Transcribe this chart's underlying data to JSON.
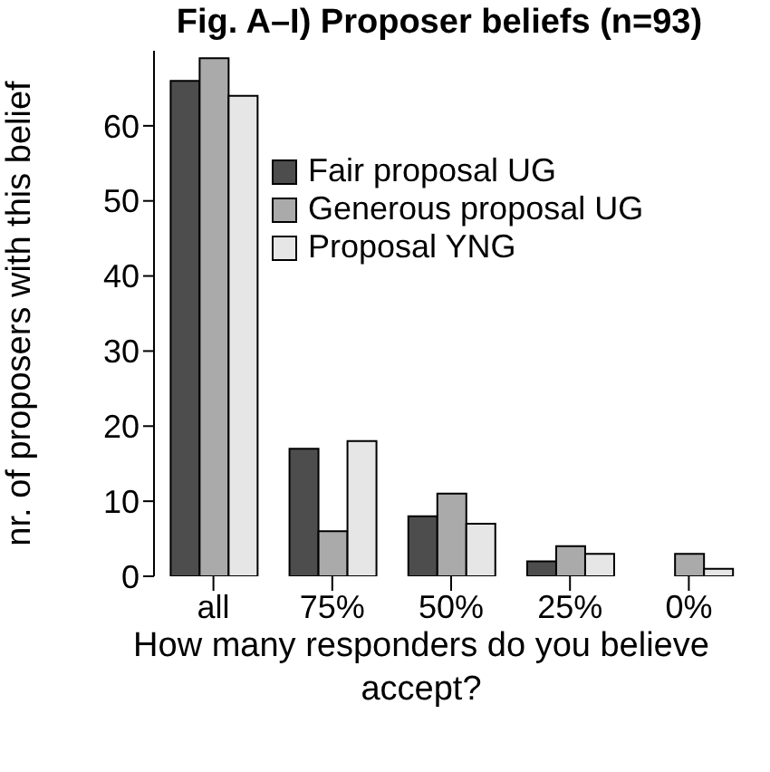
{
  "chart_data": {
    "type": "bar",
    "title": "Fig. A–I) Proposer beliefs (n=93)",
    "xlabel": "How many responders do you believe accept?",
    "ylabel": "nr. of proposers with this belief",
    "categories": [
      "all",
      "75%",
      "50%",
      "25%",
      "0%"
    ],
    "series": [
      {
        "name": "Fair proposal UG",
        "color": "#4d4d4d",
        "values": [
          66,
          17,
          8,
          2,
          0
        ]
      },
      {
        "name": "Generous proposal UG",
        "color": "#aaaaaa",
        "values": [
          69,
          6,
          11,
          4,
          3
        ]
      },
      {
        "name": "Proposal YNG",
        "color": "#e6e6e6",
        "values": [
          64,
          18,
          7,
          3,
          1
        ]
      }
    ],
    "ylim": [
      0,
      70
    ],
    "yticks": [
      0,
      10,
      20,
      30,
      40,
      50,
      60
    ],
    "grid": false,
    "legend": "top right"
  }
}
